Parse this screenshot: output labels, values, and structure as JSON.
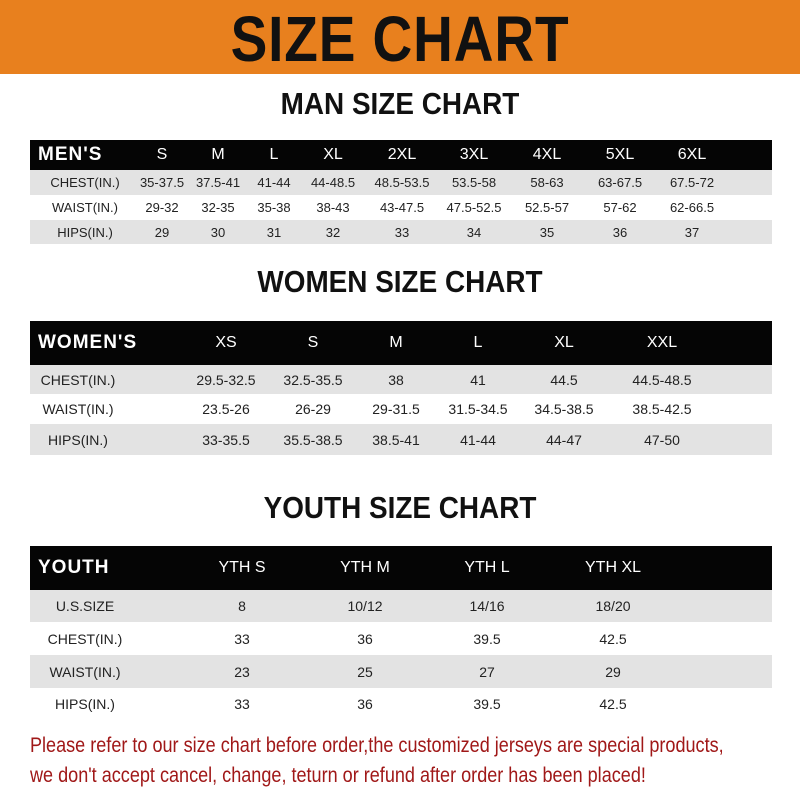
{
  "banner": {
    "title": "SIZE CHART",
    "color": "#e8801e"
  },
  "men": {
    "title": "MAN SIZE CHART",
    "header": [
      "MEN'S",
      "S",
      "M",
      "L",
      "XL",
      "2XL",
      "3XL",
      "4XL",
      "5XL",
      "6XL"
    ],
    "rows": [
      [
        "CHEST(IN.)",
        "35-37.5",
        "37.5-41",
        "41-44",
        "44-48.5",
        "48.5-53.5",
        "53.5-58",
        "58-63",
        "63-67.5",
        "67.5-72"
      ],
      [
        "WAIST(IN.)",
        "29-32",
        "32-35",
        "35-38",
        "38-43",
        "43-47.5",
        "47.5-52.5",
        "52.5-57",
        "57-62",
        "62-66.5"
      ],
      [
        "HIPS(IN.)",
        "29",
        "30",
        "31",
        "32",
        "33",
        "34",
        "35",
        "36",
        "37"
      ]
    ]
  },
  "women": {
    "title": "WOMEN SIZE CHART",
    "header": [
      "WOMEN'S",
      "XS",
      "S",
      "M",
      "L",
      "XL",
      "XXL"
    ],
    "rows": [
      [
        "CHEST(IN.)",
        "29.5-32.5",
        "32.5-35.5",
        "38",
        "41",
        "44.5",
        "44.5-48.5"
      ],
      [
        "WAIST(IN.)",
        "23.5-26",
        "26-29",
        "29-31.5",
        "31.5-34.5",
        "34.5-38.5",
        "38.5-42.5"
      ],
      [
        "HIPS(IN.)",
        "33-35.5",
        "35.5-38.5",
        "38.5-41",
        "41-44",
        "44-47",
        "47-50"
      ]
    ]
  },
  "youth": {
    "title": "YOUTH SIZE CHART",
    "header": [
      "YOUTH",
      "YTH S",
      "YTH M",
      "YTH L",
      "YTH XL"
    ],
    "rows": [
      [
        "U.S.SIZE",
        "8",
        "10/12",
        "14/16",
        "18/20"
      ],
      [
        "CHEST(IN.)",
        "33",
        "36",
        "39.5",
        "42.5"
      ],
      [
        "WAIST(IN.)",
        "23",
        "25",
        "27",
        "29"
      ],
      [
        "HIPS(IN.)",
        "33",
        "36",
        "39.5",
        "42.5"
      ]
    ]
  },
  "footer": {
    "line1": "Please refer to our size chart before order,the customized jerseys are special products,",
    "line2": "we don't accept cancel, change, teturn or refund after order has been placed!",
    "color": "#a01818"
  }
}
